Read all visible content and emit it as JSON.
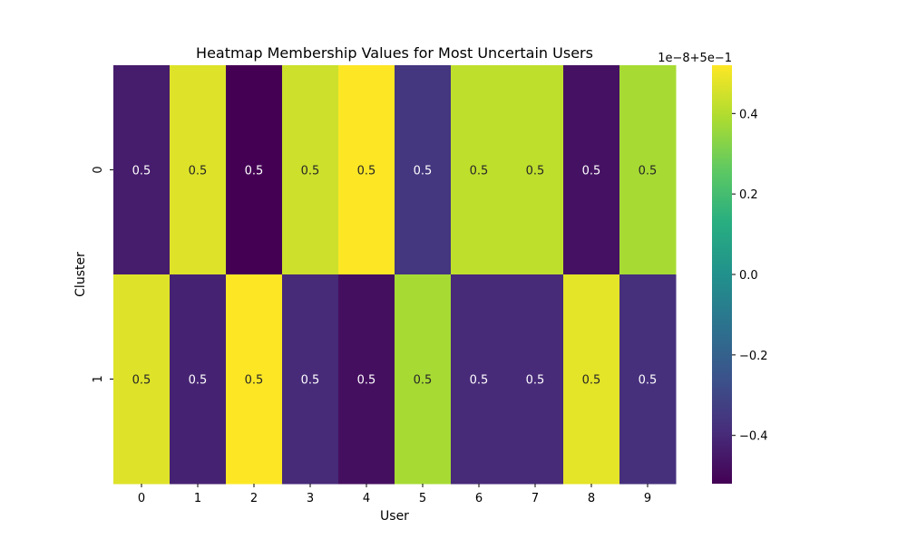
{
  "chart_data": {
    "type": "heatmap",
    "title": "Heatmap Membership Values for Most Uncertain Users",
    "xlabel": "User",
    "ylabel": "Cluster",
    "x_categories": [
      "0",
      "1",
      "2",
      "3",
      "4",
      "5",
      "6",
      "7",
      "8",
      "9"
    ],
    "y_categories": [
      "0",
      "1"
    ],
    "cell_text": [
      [
        "0.5",
        "0.5",
        "0.5",
        "0.5",
        "0.5",
        "0.5",
        "0.5",
        "0.5",
        "0.5",
        "0.5"
      ],
      [
        "0.5",
        "0.5",
        "0.5",
        "0.5",
        "0.5",
        "0.5",
        "0.5",
        "0.5",
        "0.5",
        "0.5"
      ]
    ],
    "offset_values": [
      [
        -0.44,
        0.47,
        -0.52,
        0.44,
        0.52,
        -0.36,
        0.42,
        0.42,
        -0.47,
        0.38
      ],
      [
        0.47,
        -0.42,
        0.52,
        -0.4,
        -0.48,
        0.38,
        -0.4,
        -0.4,
        0.48,
        -0.38
      ]
    ],
    "colorbar": {
      "colormap": "viridis",
      "vmin": -0.52,
      "vmax": 0.52,
      "ticks": [
        -0.4,
        -0.2,
        0.0,
        0.2,
        0.4
      ],
      "tick_labels": [
        "−0.4",
        "−0.2",
        "0.0",
        "0.2",
        "0.4"
      ],
      "offset_text": "1e−8+5e−1"
    },
    "annotation_text_colors": {
      "on_dark": "#ffffff",
      "on_light": "#262626"
    }
  }
}
